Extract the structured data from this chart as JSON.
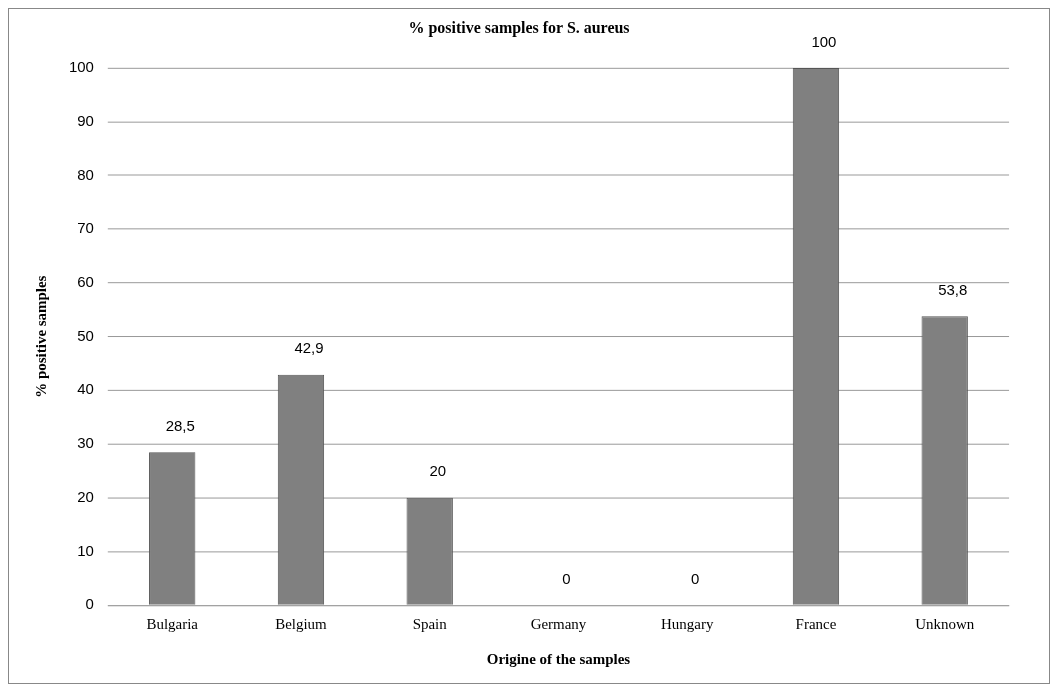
{
  "chart_data": {
    "type": "bar",
    "title": "% positive samples for S. aureus",
    "xlabel": "Origine of the samples",
    "ylabel": "% positive samples",
    "categories": [
      "Bulgaria",
      "Belgium",
      "Spain",
      "Germany",
      "Hungary",
      "France",
      "Unknown"
    ],
    "values": [
      28.5,
      42.9,
      20,
      0,
      0,
      100,
      53.8
    ],
    "value_labels": [
      "28,5",
      "42,9",
      "20",
      "0",
      "0",
      "100",
      "53,8"
    ],
    "color": "#808080",
    "ylim": [
      0,
      100
    ],
    "yticks": [
      0,
      10,
      20,
      30,
      40,
      50,
      60,
      70,
      80,
      90,
      100
    ],
    "grid": "y",
    "legend": false
  }
}
